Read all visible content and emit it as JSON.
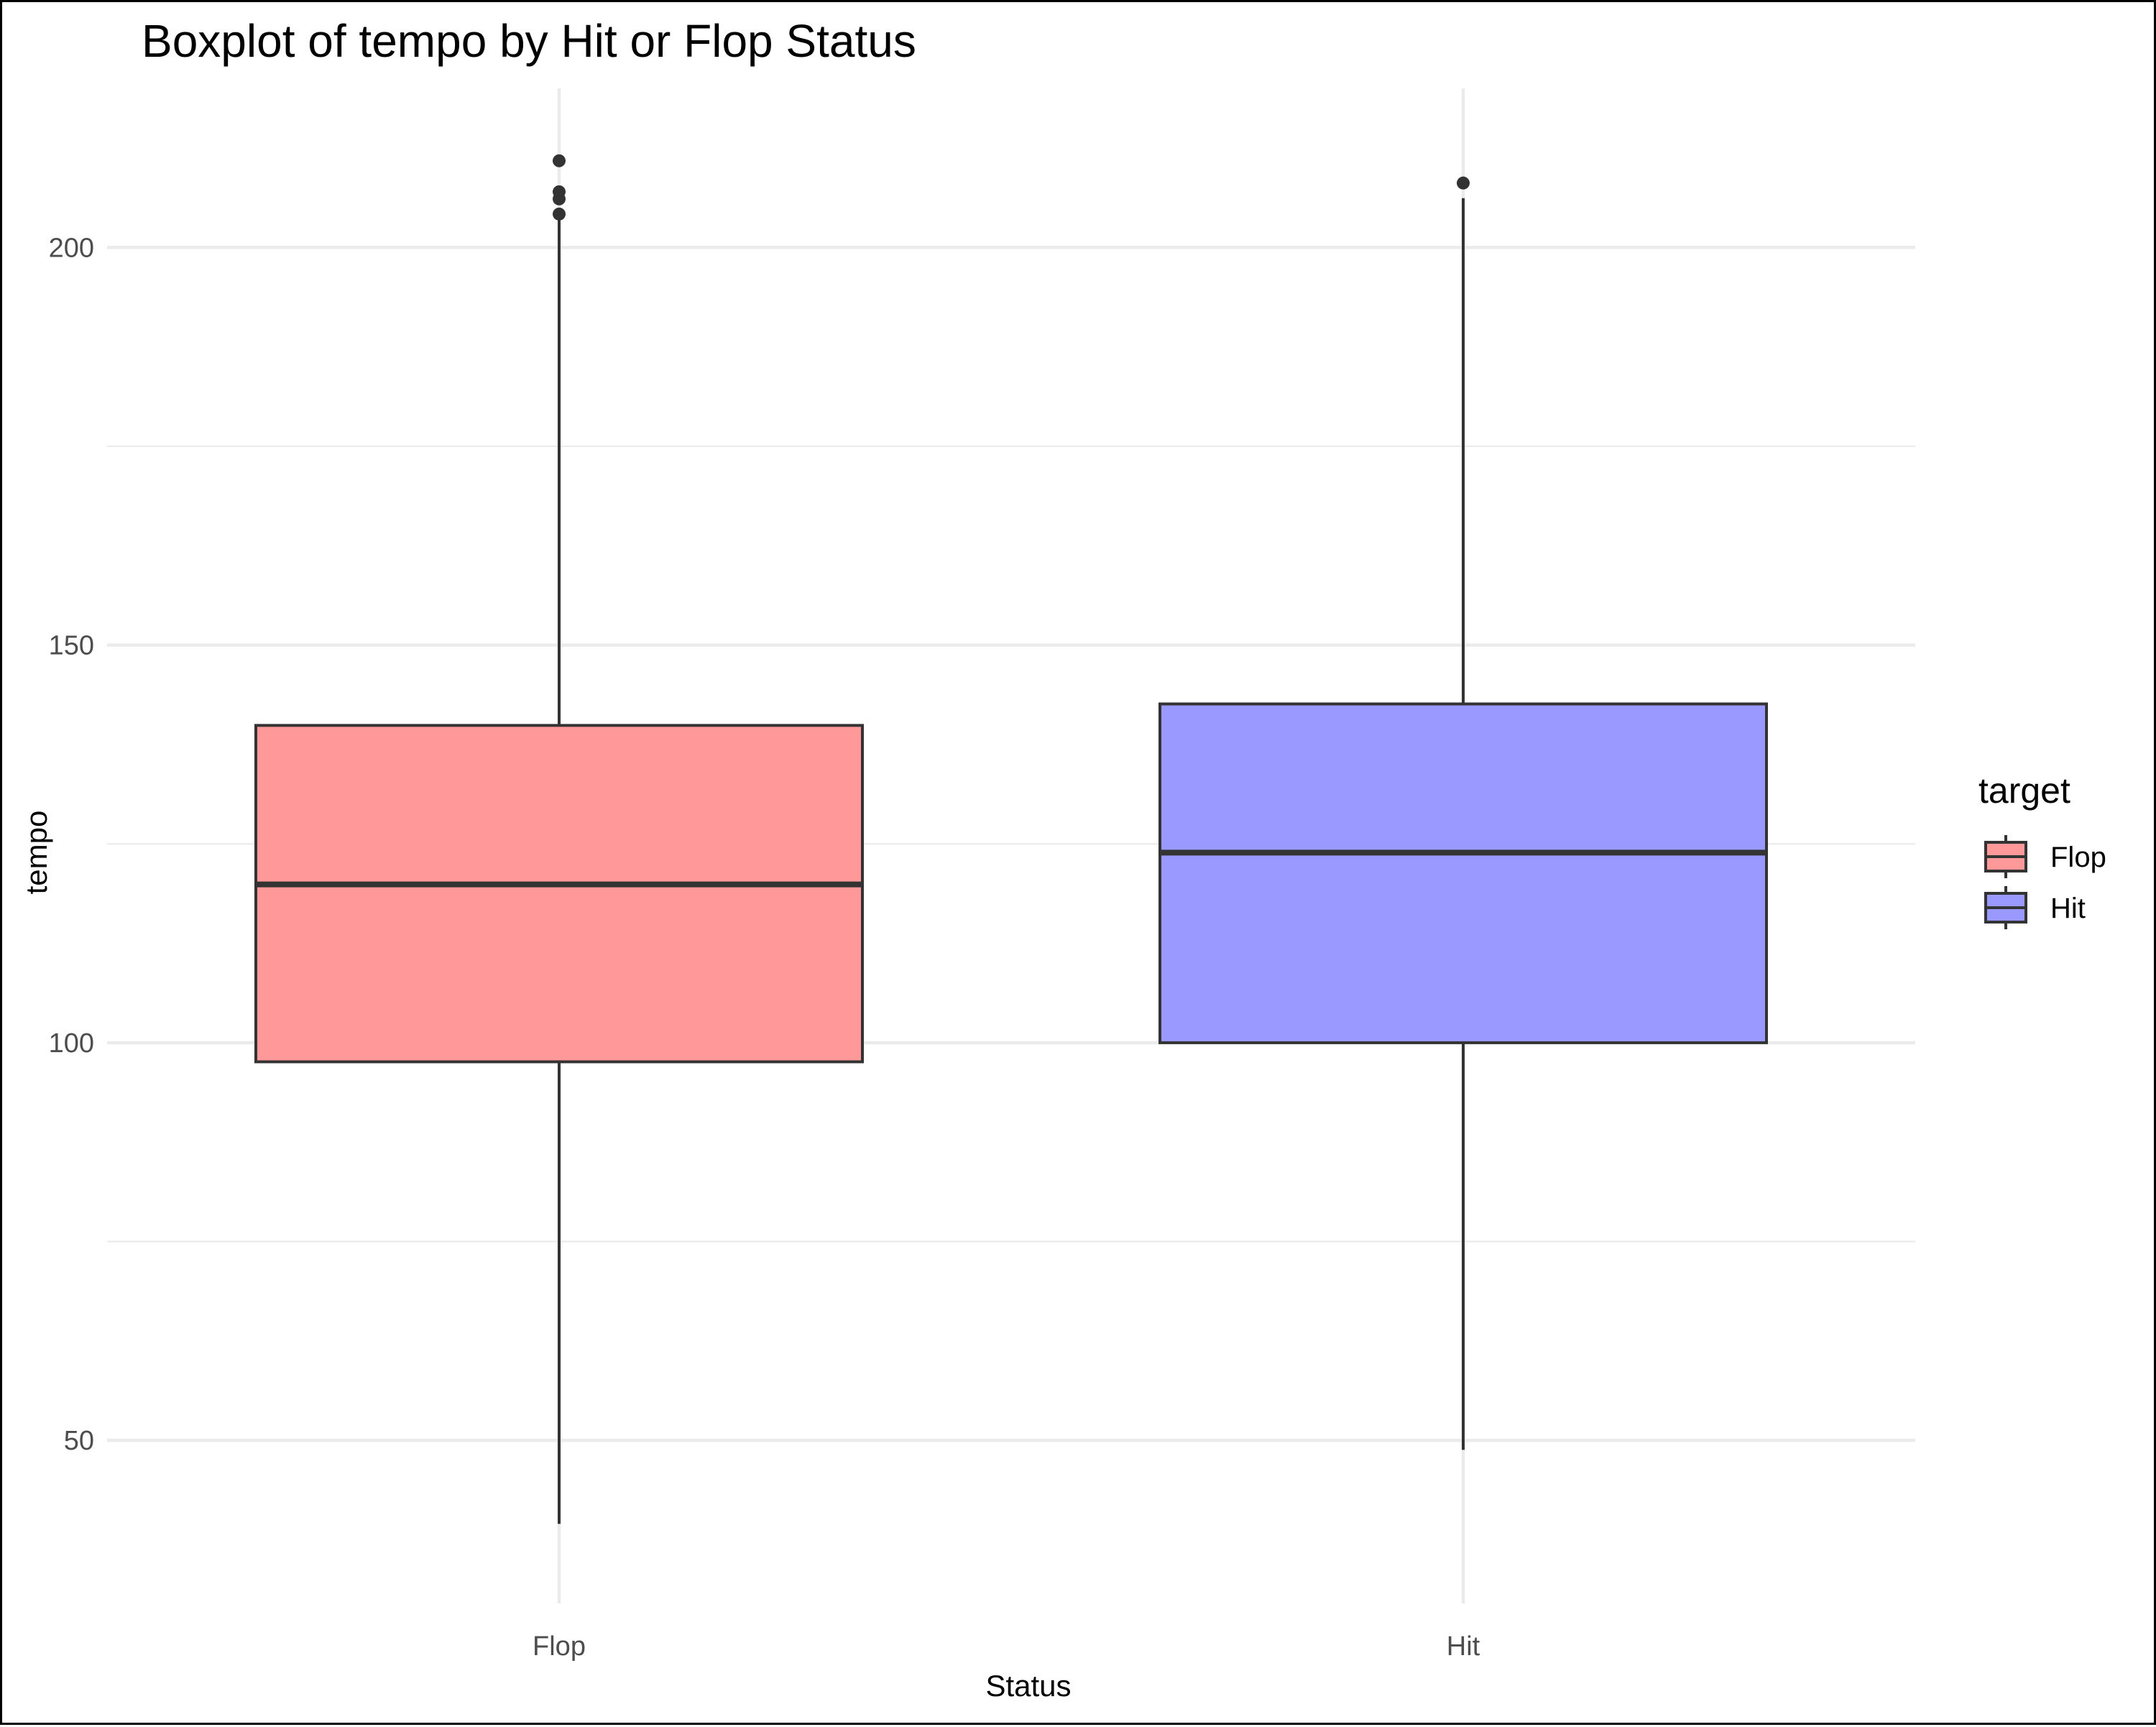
{
  "chart_data": {
    "type": "boxplot",
    "title": "Boxplot of tempo by Hit or Flop Status",
    "xlabel": "Status",
    "ylabel": "tempo",
    "categories": [
      "Flop",
      "Hit"
    ],
    "ylim": [
      29.5,
      220
    ],
    "y_ticks": [
      50,
      100,
      150,
      200
    ],
    "y_minor_ticks": [
      75,
      125,
      175
    ],
    "grid": true,
    "legend": {
      "title": "target",
      "placement": "right",
      "entries": [
        "Flop",
        "Hit"
      ]
    },
    "colors": {
      "Flop": "#ff9999",
      "Hit": "#9999ff",
      "outline": "#333333",
      "grid": "#ebebeb"
    },
    "boxes": [
      {
        "category": "Flop",
        "whisker_low": 39.5,
        "q1": 97.6,
        "median": 119.9,
        "q3": 139.9,
        "whisker_high": 203.5,
        "outliers": [
          204.2,
          206.1,
          207.0,
          210.9
        ]
      },
      {
        "category": "Hit",
        "whisker_low": 48.8,
        "q1": 100.0,
        "median": 123.9,
        "q3": 142.6,
        "whisker_high": 206.2,
        "outliers": [
          208.1
        ]
      }
    ]
  }
}
